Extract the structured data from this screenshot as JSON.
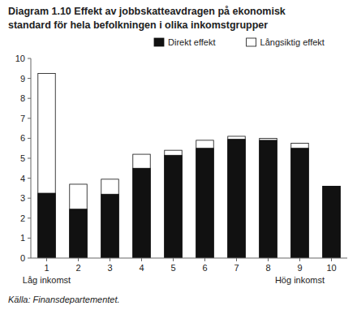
{
  "chart_data": {
    "type": "bar",
    "title": "Diagram 1.10 Effekt av jobbskatteavdragen på ekonomisk",
    "subtitle": "standard för hela befolkningen i olika inkomstgrupper",
    "categories": [
      1,
      2,
      3,
      4,
      5,
      6,
      7,
      8,
      9,
      10
    ],
    "series": [
      {
        "name": "Direkt effekt",
        "color": "#111111",
        "values": [
          3.25,
          2.45,
          3.2,
          4.5,
          5.15,
          5.5,
          5.95,
          5.9,
          5.5,
          3.6
        ]
      },
      {
        "name": "Långsiktig effekt",
        "color": "#ffffff",
        "values": [
          9.25,
          3.7,
          3.95,
          5.2,
          5.4,
          5.9,
          6.1,
          6.0,
          5.75,
          3.6
        ]
      }
    ],
    "annotations": [
      {
        "text": "Låg inkomst",
        "x": 1
      },
      {
        "text": "Hög inkomst",
        "x": 9
      }
    ],
    "source": "Källa: Finansdepartementet.",
    "ylim": [
      0,
      10
    ],
    "yticks": [
      0,
      1,
      2,
      3,
      4,
      5,
      6,
      7,
      8,
      9,
      10
    ],
    "legend": "upper right",
    "grid": false
  }
}
